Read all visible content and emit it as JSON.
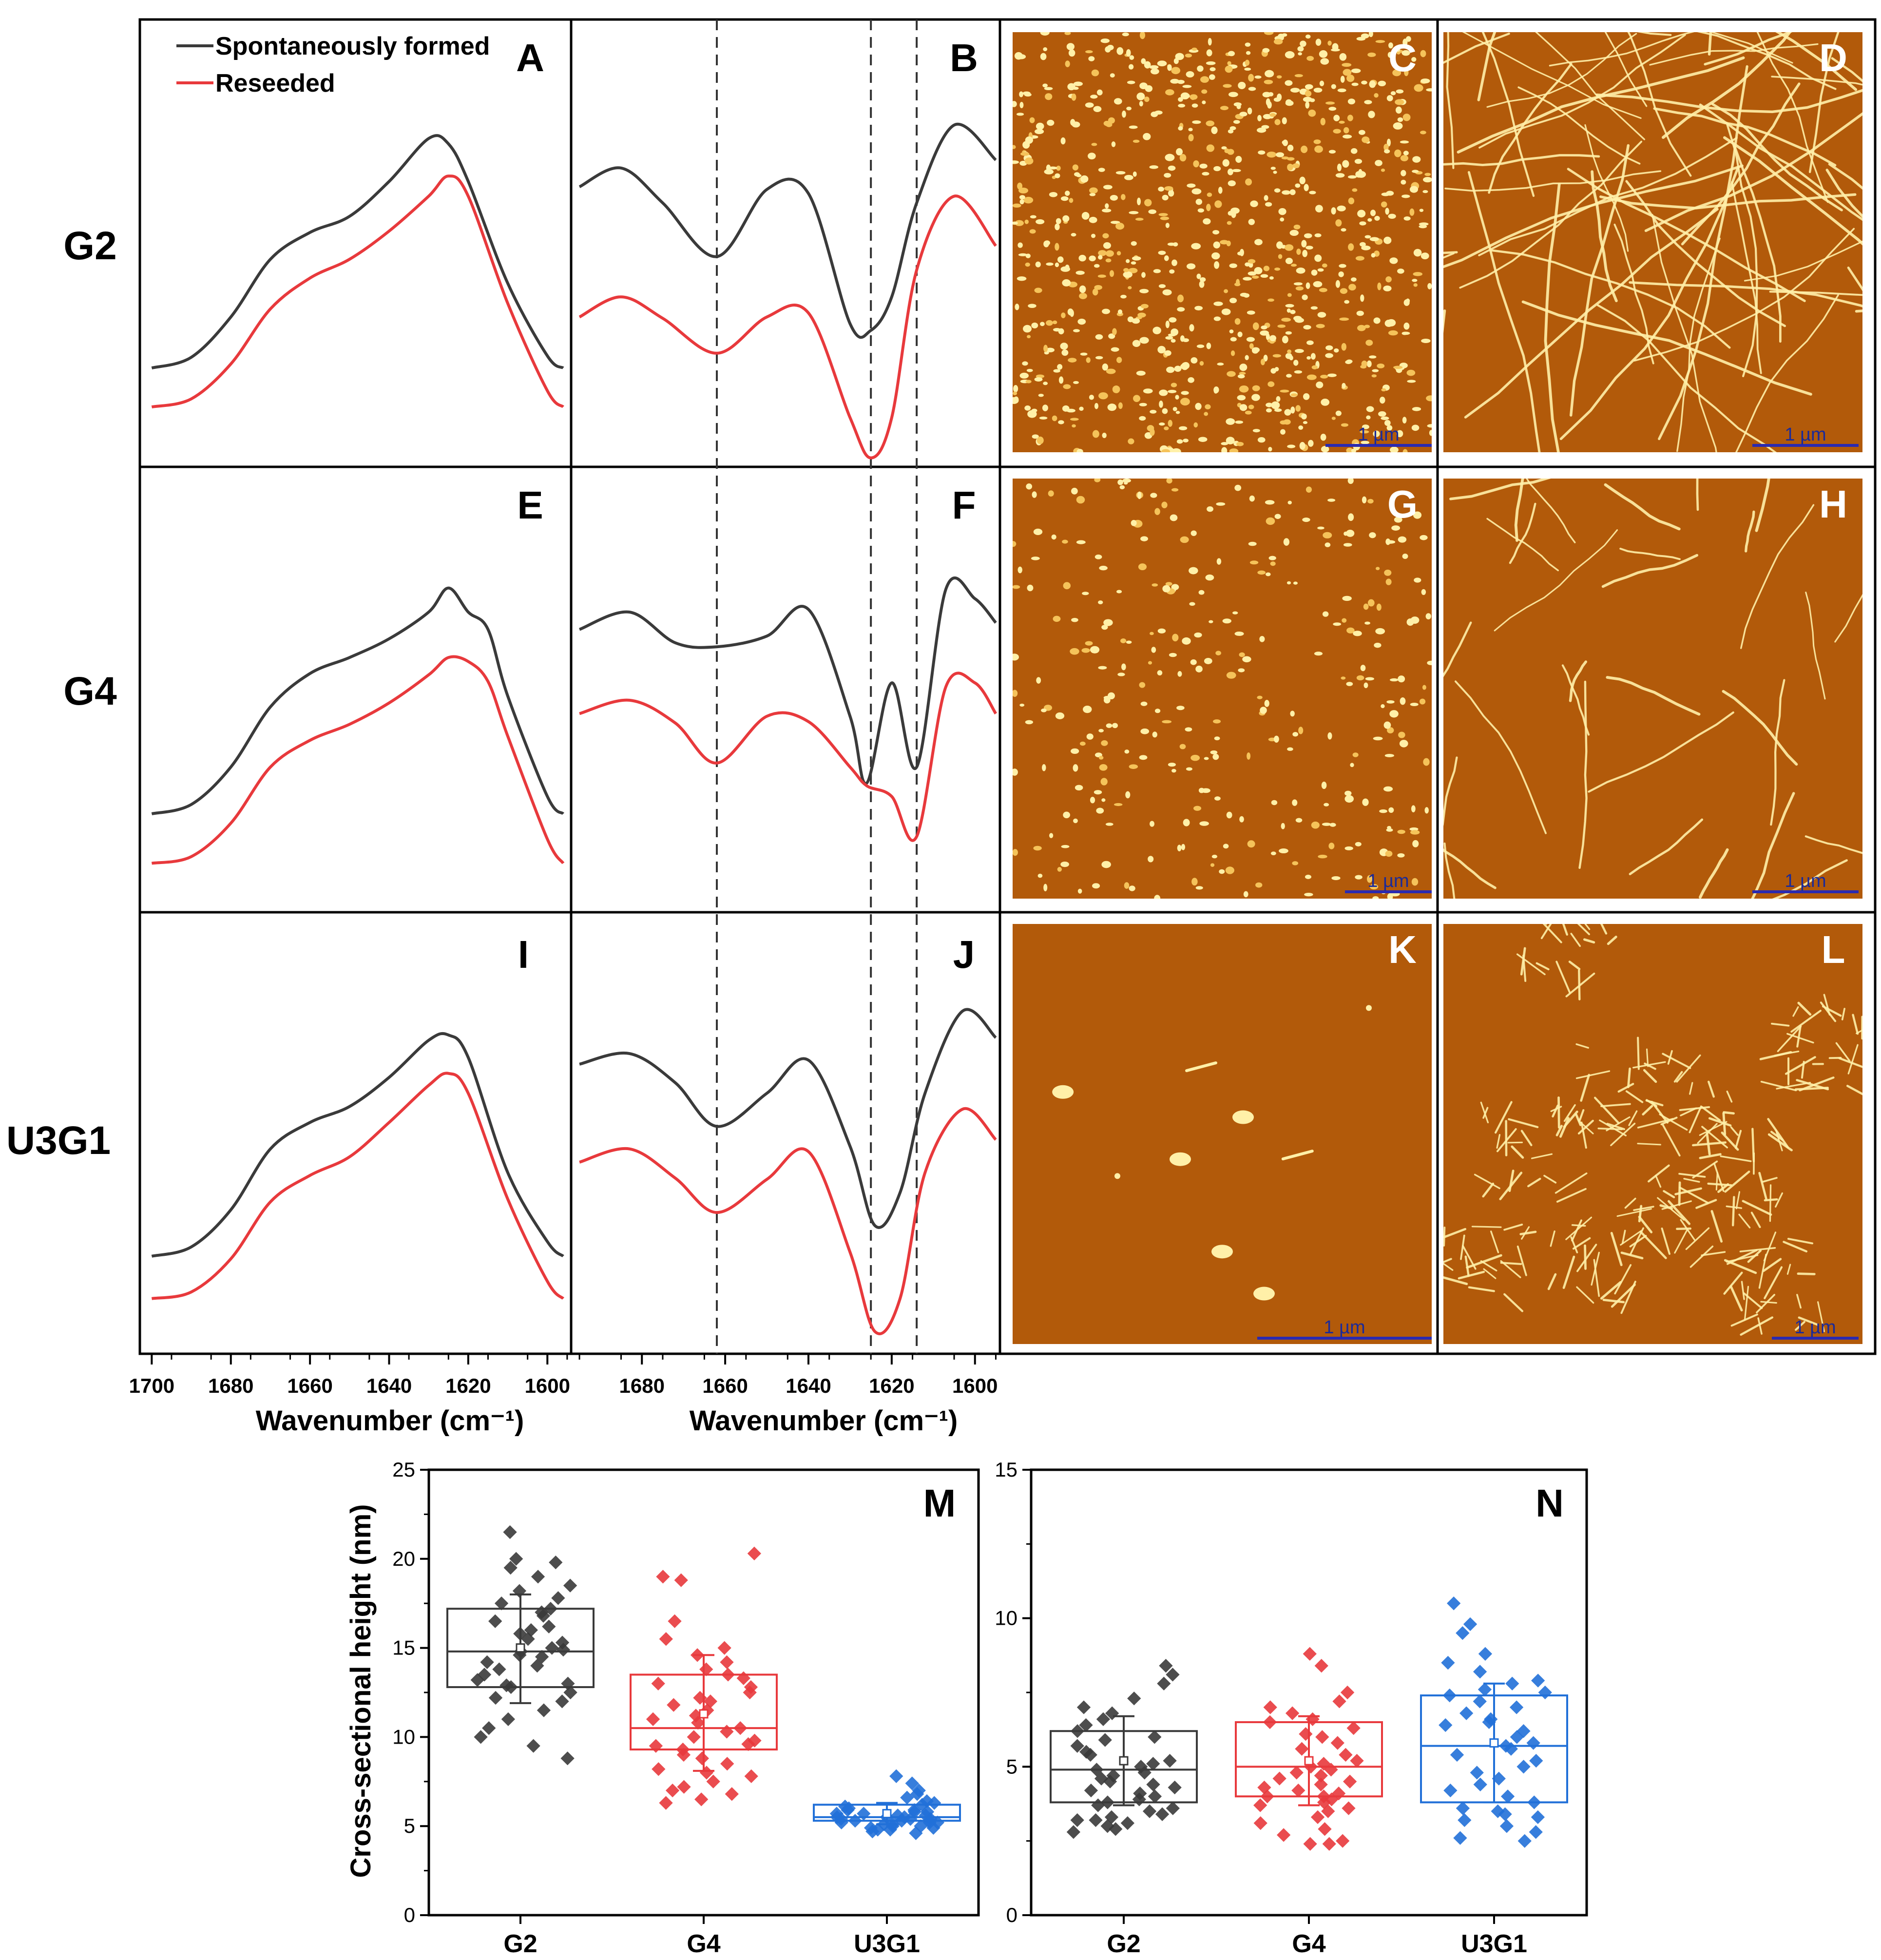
{
  "row_labels": [
    "G2",
    "G4",
    "U3G1"
  ],
  "legend": {
    "series_1": "Spontaneously formed",
    "series_2": "Reseeded"
  },
  "colors": {
    "series_1": "#3a3a3a",
    "series_2": "#e8393c",
    "afm_bg": "#b25a0a",
    "afm_feature": "#fff0a8",
    "scale_bar": "#2a2ab0",
    "box_blue": "#2170d8"
  },
  "panel_labels": [
    "A",
    "B",
    "C",
    "D",
    "E",
    "F",
    "G",
    "H",
    "I",
    "J",
    "K",
    "L",
    "M",
    "N"
  ],
  "spectra": {
    "xlabel": "Wavenumber (cm⁻¹)",
    "absorbance_ticks": [
      "1700",
      "1680",
      "1660",
      "1640",
      "1620",
      "1600"
    ],
    "second_derivative_ticks": [
      "1680",
      "1660",
      "1640",
      "1620",
      "1600"
    ],
    "dashed_lines": [
      1662,
      1625,
      1614
    ]
  },
  "afm": {
    "scale_bar_label": "1 µm",
    "images": [
      "C",
      "D",
      "G",
      "H",
      "K",
      "L"
    ]
  },
  "chart_data": [
    {
      "type": "line",
      "panel": "A",
      "sample": "G2",
      "xlim": [
        1703,
        1594
      ],
      "x": [
        1700,
        1690,
        1680,
        1670,
        1660,
        1650,
        1640,
        1630,
        1625,
        1620,
        1610,
        1600,
        1596
      ],
      "series": [
        {
          "name": "Spontaneously formed",
          "values": [
            -0.93,
            -0.85,
            -0.55,
            -0.12,
            0.08,
            0.2,
            0.46,
            0.78,
            0.74,
            0.46,
            -0.3,
            -0.84,
            -0.93
          ]
        },
        {
          "name": "Reseeded",
          "values": [
            -1.22,
            -1.16,
            -0.9,
            -0.49,
            -0.26,
            -0.12,
            0.09,
            0.35,
            0.5,
            0.35,
            -0.45,
            -1.1,
            -1.22
          ]
        }
      ]
    },
    {
      "type": "line",
      "panel": "E",
      "sample": "G4",
      "xlim": [
        1703,
        1594
      ],
      "x": [
        1700,
        1690,
        1680,
        1670,
        1660,
        1650,
        1640,
        1630,
        1625,
        1620,
        1615,
        1610,
        1600,
        1596
      ],
      "series": [
        {
          "name": "Spontaneously formed",
          "values": [
            -0.93,
            -0.86,
            -0.58,
            -0.13,
            0.12,
            0.24,
            0.38,
            0.58,
            0.76,
            0.58,
            0.45,
            -0.05,
            -0.8,
            -0.93
          ]
        },
        {
          "name": "Reseeded",
          "values": [
            -1.3,
            -1.25,
            -1.0,
            -0.58,
            -0.38,
            -0.26,
            -0.1,
            0.11,
            0.24,
            0.21,
            0.06,
            -0.35,
            -1.12,
            -1.3
          ]
        }
      ]
    },
    {
      "type": "line",
      "panel": "I",
      "sample": "U3G1",
      "xlim": [
        1703,
        1594
      ],
      "x": [
        1700,
        1690,
        1680,
        1670,
        1660,
        1650,
        1640,
        1630,
        1625,
        1620,
        1610,
        1600,
        1596
      ],
      "series": [
        {
          "name": "Spontaneously formed",
          "values": [
            -0.93,
            -0.86,
            -0.58,
            -0.12,
            0.08,
            0.2,
            0.42,
            0.7,
            0.74,
            0.57,
            -0.3,
            -0.82,
            -0.93
          ]
        },
        {
          "name": "Reseeded",
          "values": [
            -1.25,
            -1.2,
            -0.95,
            -0.52,
            -0.32,
            -0.18,
            0.08,
            0.36,
            0.45,
            0.3,
            -0.5,
            -1.12,
            -1.25
          ]
        }
      ]
    },
    {
      "type": "line",
      "panel": "B",
      "sample": "G2",
      "xlim": [
        1697,
        1594
      ],
      "x": [
        1695,
        1685,
        1675,
        1662,
        1650,
        1640,
        1630,
        1625,
        1620,
        1614,
        1605,
        1595
      ],
      "series": [
        {
          "name": "Spontaneously formed",
          "values": [
            0.42,
            0.56,
            0.3,
            -0.1,
            0.4,
            0.37,
            -0.6,
            -0.65,
            -0.4,
            0.3,
            0.88,
            0.62
          ]
        },
        {
          "name": "Reseeded",
          "values": [
            -0.55,
            -0.4,
            -0.56,
            -0.82,
            -0.55,
            -0.52,
            -1.3,
            -1.6,
            -1.3,
            -0.2,
            0.35,
            -0.02
          ]
        }
      ]
    },
    {
      "type": "line",
      "panel": "F",
      "sample": "G4",
      "xlim": [
        1697,
        1594
      ],
      "x": [
        1695,
        1683,
        1672,
        1662,
        1650,
        1640,
        1630,
        1626,
        1620,
        1614,
        1607,
        1600,
        1595
      ],
      "series": [
        {
          "name": "Spontaneously formed",
          "values": [
            0.45,
            0.58,
            0.35,
            0.32,
            0.4,
            0.6,
            -0.2,
            -0.7,
            0.05,
            -0.58,
            0.75,
            0.68,
            0.5
          ]
        },
        {
          "name": "Reseeded",
          "values": [
            -0.18,
            -0.08,
            -0.25,
            -0.55,
            -0.2,
            -0.24,
            -0.58,
            -0.72,
            -0.8,
            -1.1,
            0.02,
            0.05,
            -0.18
          ]
        }
      ]
    },
    {
      "type": "line",
      "panel": "J",
      "sample": "U3G1",
      "xlim": [
        1697,
        1594
      ],
      "x": [
        1695,
        1683,
        1672,
        1662,
        1650,
        1640,
        1630,
        1624,
        1618,
        1612,
        1603,
        1595
      ],
      "series": [
        {
          "name": "Spontaneously formed",
          "values": [
            0.52,
            0.6,
            0.38,
            0.05,
            0.3,
            0.55,
            -0.1,
            -0.7,
            -0.45,
            0.3,
            0.92,
            0.72
          ]
        },
        {
          "name": "Reseeded",
          "values": [
            -0.22,
            -0.12,
            -0.34,
            -0.6,
            -0.35,
            -0.14,
            -0.9,
            -1.5,
            -1.25,
            -0.3,
            0.18,
            -0.05
          ]
        }
      ]
    },
    {
      "type": "box",
      "panel": "M",
      "ylabel": "Cross-sectional height (nm)",
      "ylim": [
        0,
        25
      ],
      "yticks": [
        "0",
        "5",
        "10",
        "15",
        "20",
        "25"
      ],
      "categories": [
        "G2",
        "G4",
        "U3G1"
      ],
      "boxes": [
        {
          "q1": 12.8,
          "median": 14.8,
          "q3": 17.2,
          "mean": 15.0,
          "whisker_low": 11.9,
          "whisker_high": 18.0
        },
        {
          "q1": 9.3,
          "median": 10.5,
          "q3": 13.5,
          "mean": 11.3,
          "whisker_low": 8.1,
          "whisker_high": 14.6
        },
        {
          "q1": 5.3,
          "median": 5.5,
          "q3": 6.2,
          "mean": 5.7,
          "whisker_low": 5.1,
          "whisker_high": 6.3
        }
      ],
      "points": [
        [
          21.5,
          20.0,
          19.8,
          19.5,
          19.0,
          18.5,
          18.2,
          17.8,
          17.5,
          17.2,
          17.0,
          16.8,
          16.5,
          16.2,
          16.0,
          15.8,
          15.5,
          15.3,
          15.0,
          14.9,
          14.8,
          14.6,
          14.5,
          14.2,
          14.0,
          13.8,
          13.5,
          13.2,
          13.0,
          12.9,
          12.8,
          12.5,
          12.2,
          12.0,
          11.5,
          11.0,
          10.5,
          10.0,
          9.5,
          8.8
        ],
        [
          20.3,
          19.0,
          18.8,
          16.5,
          15.5,
          15.0,
          14.6,
          14.2,
          13.8,
          13.5,
          13.3,
          13.0,
          12.8,
          12.5,
          12.2,
          12.0,
          11.8,
          11.5,
          11.2,
          11.0,
          10.8,
          10.5,
          10.3,
          10.0,
          9.8,
          9.5,
          9.3,
          9.0,
          8.8,
          8.5,
          8.2,
          8.0,
          7.8,
          7.5,
          7.2,
          7.0,
          6.8,
          6.5,
          6.3,
          9.6
        ],
        [
          7.8,
          7.4,
          7.0,
          6.8,
          6.6,
          6.4,
          6.3,
          6.2,
          6.1,
          6.0,
          5.9,
          5.9,
          5.8,
          5.8,
          5.7,
          5.7,
          5.6,
          5.6,
          5.5,
          5.5,
          5.5,
          5.4,
          5.4,
          5.4,
          5.3,
          5.3,
          5.3,
          5.2,
          5.2,
          5.2,
          5.1,
          5.1,
          5.0,
          5.0,
          4.9,
          4.9,
          4.8,
          4.8,
          4.7,
          4.6
        ]
      ]
    },
    {
      "type": "box",
      "panel": "N",
      "ylim": [
        0,
        15
      ],
      "yticks": [
        "0",
        "5",
        "10",
        "15"
      ],
      "categories": [
        "G2",
        "G4",
        "U3G1"
      ],
      "boxes": [
        {
          "q1": 3.8,
          "median": 4.9,
          "q3": 6.2,
          "mean": 5.2,
          "whisker_low": 3.7,
          "whisker_high": 6.7
        },
        {
          "q1": 4.0,
          "median": 5.0,
          "q3": 6.5,
          "mean": 5.2,
          "whisker_low": 3.7,
          "whisker_high": 6.7
        },
        {
          "q1": 3.8,
          "median": 5.7,
          "q3": 7.4,
          "mean": 5.8,
          "whisker_low": 3.8,
          "whisker_high": 7.8
        }
      ],
      "points": [
        [
          8.4,
          8.1,
          7.8,
          7.3,
          7.0,
          6.8,
          6.6,
          6.4,
          6.2,
          6.0,
          5.9,
          5.7,
          5.5,
          5.4,
          5.2,
          5.1,
          5.0,
          4.9,
          4.8,
          4.7,
          4.6,
          4.5,
          4.4,
          4.3,
          4.2,
          4.1,
          4.0,
          3.9,
          3.8,
          3.7,
          3.6,
          3.5,
          3.4,
          3.3,
          3.2,
          3.2,
          3.1,
          3.0,
          2.9,
          2.8
        ],
        [
          8.8,
          8.4,
          7.5,
          7.2,
          7.0,
          6.8,
          6.6,
          6.5,
          6.3,
          6.1,
          6.0,
          5.8,
          5.6,
          5.4,
          5.2,
          5.1,
          5.0,
          4.9,
          4.8,
          4.7,
          4.6,
          4.5,
          4.4,
          4.3,
          4.2,
          4.1,
          4.0,
          3.9,
          3.8,
          3.7,
          3.6,
          3.5,
          3.3,
          3.1,
          2.9,
          2.7,
          2.5,
          2.4,
          2.4,
          4.0
        ],
        [
          10.5,
          9.8,
          9.5,
          8.8,
          8.5,
          8.2,
          7.9,
          7.8,
          7.5,
          7.4,
          7.2,
          7.0,
          6.8,
          6.6,
          6.4,
          6.2,
          6.0,
          5.8,
          5.7,
          5.6,
          5.4,
          5.2,
          5.0,
          4.8,
          4.6,
          4.4,
          4.2,
          4.0,
          3.8,
          3.6,
          3.5,
          3.4,
          3.3,
          3.2,
          3.0,
          2.8,
          2.6,
          2.5,
          7.6,
          6.5
        ]
      ]
    }
  ]
}
